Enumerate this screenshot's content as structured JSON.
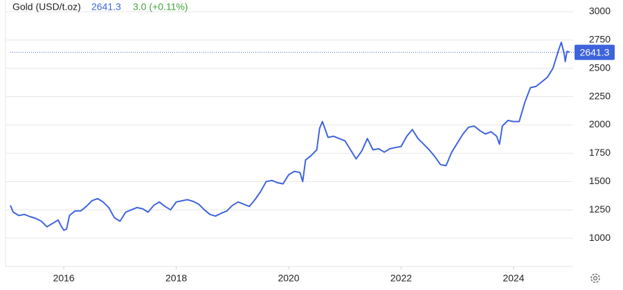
{
  "chart_data": {
    "type": "line",
    "title": "Gold (USD/t.oz)",
    "last_value": 2641.3,
    "change_label": "3.0 (+0.11%)",
    "color": "#3d63dd",
    "change_color": "#3aa53a",
    "xlim": [
      2015.05,
      2025.06
    ],
    "ylim": [
      750,
      3100
    ],
    "xticks": [
      2016,
      2018,
      2020,
      2022,
      2024
    ],
    "yticks": [
      1000,
      1250,
      1500,
      1750,
      2000,
      2250,
      2500,
      2750,
      3000
    ],
    "grid": true,
    "series": [
      {
        "name": "Gold",
        "color": "#3d63dd",
        "x": [
          2015.05,
          2015.1,
          2015.2,
          2015.3,
          2015.4,
          2015.5,
          2015.6,
          2015.7,
          2015.8,
          2015.9,
          2015.95,
          2016.0,
          2016.05,
          2016.1,
          2016.2,
          2016.3,
          2016.4,
          2016.5,
          2016.6,
          2016.7,
          2016.8,
          2016.9,
          2017.0,
          2017.1,
          2017.2,
          2017.3,
          2017.4,
          2017.5,
          2017.6,
          2017.7,
          2017.8,
          2017.9,
          2018.0,
          2018.1,
          2018.2,
          2018.3,
          2018.4,
          2018.5,
          2018.6,
          2018.7,
          2018.8,
          2018.9,
          2019.0,
          2019.1,
          2019.2,
          2019.3,
          2019.4,
          2019.5,
          2019.6,
          2019.7,
          2019.8,
          2019.9,
          2020.0,
          2020.1,
          2020.2,
          2020.25,
          2020.3,
          2020.4,
          2020.5,
          2020.55,
          2020.6,
          2020.7,
          2020.8,
          2020.9,
          2021.0,
          2021.1,
          2021.2,
          2021.3,
          2021.4,
          2021.5,
          2021.6,
          2021.7,
          2021.8,
          2021.9,
          2022.0,
          2022.1,
          2022.2,
          2022.3,
          2022.4,
          2022.5,
          2022.6,
          2022.7,
          2022.8,
          2022.9,
          2023.0,
          2023.1,
          2023.2,
          2023.3,
          2023.4,
          2023.5,
          2023.6,
          2023.7,
          2023.75,
          2023.8,
          2023.9,
          2024.0,
          2024.1,
          2024.2,
          2024.3,
          2024.4,
          2024.5,
          2024.6,
          2024.7,
          2024.8,
          2024.85,
          2024.9,
          2024.92,
          2024.95,
          2025.0
        ],
        "values": [
          1290,
          1230,
          1200,
          1210,
          1190,
          1175,
          1150,
          1100,
          1130,
          1160,
          1110,
          1070,
          1080,
          1200,
          1240,
          1240,
          1280,
          1330,
          1350,
          1320,
          1270,
          1180,
          1150,
          1230,
          1250,
          1270,
          1260,
          1230,
          1290,
          1320,
          1280,
          1250,
          1320,
          1330,
          1340,
          1325,
          1300,
          1250,
          1210,
          1195,
          1220,
          1240,
          1290,
          1320,
          1300,
          1280,
          1340,
          1410,
          1500,
          1510,
          1490,
          1480,
          1560,
          1590,
          1580,
          1500,
          1690,
          1730,
          1780,
          1970,
          2030,
          1890,
          1900,
          1880,
          1860,
          1780,
          1700,
          1770,
          1880,
          1780,
          1790,
          1760,
          1790,
          1800,
          1810,
          1900,
          1960,
          1880,
          1830,
          1780,
          1720,
          1650,
          1640,
          1760,
          1840,
          1920,
          1980,
          1990,
          1950,
          1920,
          1940,
          1900,
          1830,
          1990,
          2040,
          2030,
          2030,
          2200,
          2330,
          2340,
          2380,
          2420,
          2500,
          2660,
          2730,
          2630,
          2560,
          2650,
          2641.3
        ]
      }
    ]
  }
}
